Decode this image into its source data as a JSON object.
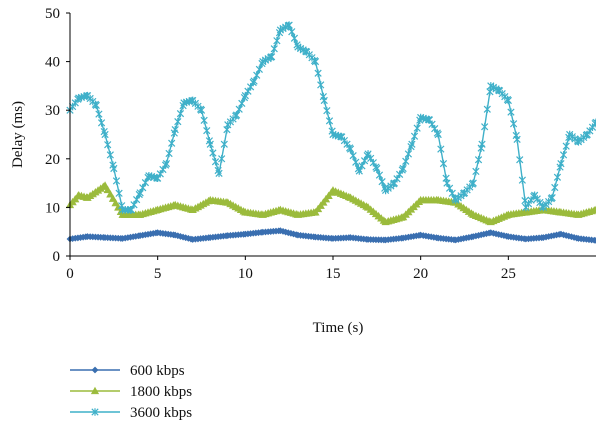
{
  "chart_data": {
    "type": "line",
    "xlabel": "Time (s)",
    "ylabel": "Delay (ms)",
    "xlim": [
      0,
      30
    ],
    "ylim": [
      0,
      50
    ],
    "xticks": [
      0,
      5,
      10,
      15,
      20,
      25
    ],
    "yticks": [
      0,
      10,
      20,
      30,
      40,
      50
    ],
    "grid": false,
    "legend_position": "bottom-left",
    "series": [
      {
        "name": "600 kbps",
        "color": "#3a6fb0",
        "marker": "diamond",
        "x": [
          0,
          1,
          2,
          3,
          4,
          5,
          6,
          7,
          8,
          9,
          10,
          11,
          12,
          13,
          14,
          15,
          16,
          17,
          18,
          19,
          20,
          21,
          22,
          23,
          24,
          25,
          26,
          27,
          28,
          29,
          30
        ],
        "y": [
          3.5,
          4.0,
          3.8,
          3.6,
          4.2,
          4.8,
          4.3,
          3.4,
          3.8,
          4.2,
          4.5,
          4.9,
          5.2,
          4.3,
          3.9,
          3.6,
          3.8,
          3.4,
          3.3,
          3.7,
          4.3,
          3.7,
          3.3,
          4.0,
          4.8,
          4.0,
          3.5,
          3.8,
          4.5,
          3.6,
          3.2
        ]
      },
      {
        "name": "1800 kbps",
        "color": "#9bbb3c",
        "marker": "triangle",
        "x": [
          0,
          0.5,
          1,
          2,
          3,
          4,
          5,
          6,
          7,
          8,
          9,
          10,
          11,
          12,
          13,
          14,
          15,
          16,
          17,
          18,
          19,
          20,
          21,
          22,
          23,
          24,
          25,
          26,
          27,
          28,
          29,
          30
        ],
        "y": [
          10.5,
          12.5,
          12.0,
          14.5,
          8.5,
          8.5,
          9.5,
          10.5,
          9.5,
          11.5,
          11.0,
          9.0,
          8.5,
          9.5,
          8.5,
          9.0,
          13.5,
          12.0,
          10.0,
          7.0,
          8.0,
          11.5,
          11.5,
          11.0,
          8.5,
          7.0,
          8.5,
          9.0,
          9.5,
          9.0,
          8.5,
          9.5
        ]
      },
      {
        "name": "3600 kbps",
        "color": "#3fb0c9",
        "marker": "star",
        "x": [
          0,
          0.5,
          1,
          1.5,
          2,
          2.5,
          3,
          3.5,
          4,
          4.5,
          5,
          5.5,
          6,
          6.5,
          7,
          7.5,
          8,
          8.5,
          9,
          9.5,
          10,
          10.5,
          11,
          11.5,
          12,
          12.5,
          13,
          13.5,
          14,
          14.5,
          15,
          15.5,
          16,
          16.5,
          17,
          17.5,
          18,
          18.5,
          19,
          19.5,
          20,
          20.5,
          21,
          21.5,
          22,
          22.5,
          23,
          23.5,
          24,
          24.5,
          25,
          25.5,
          26,
          26.5,
          27,
          27.5,
          28,
          28.5,
          29,
          29.5,
          30
        ],
        "y": [
          30,
          32.5,
          33,
          31,
          25,
          18,
          9.5,
          9.5,
          13,
          16.5,
          16,
          19,
          26,
          31.5,
          32,
          30,
          23,
          17,
          27,
          29,
          33,
          36,
          40,
          41,
          46.5,
          47.5,
          43,
          42,
          40,
          32,
          25,
          24.5,
          22,
          17.5,
          21,
          18,
          13.5,
          15,
          18,
          23,
          28.5,
          28,
          25,
          15,
          11.5,
          13,
          15,
          23,
          35,
          34,
          32,
          24,
          10,
          12.5,
          10,
          12,
          19,
          25,
          23.5,
          25,
          27.5
        ]
      }
    ]
  }
}
